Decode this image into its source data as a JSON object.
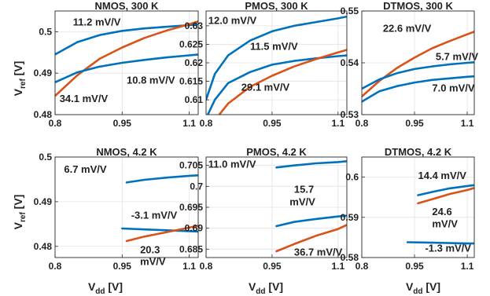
{
  "chart_data": [
    {
      "type": "line",
      "title": "NMOS, 300 K",
      "xlim": [
        0.8,
        1.12
      ],
      "ylim": [
        0.48,
        0.505
      ],
      "xticks": [
        "0.8",
        "0.95",
        "1.1"
      ],
      "yticks": [
        "0.48",
        "0.49",
        "0.5"
      ],
      "series": [
        {
          "color": "#0072BD",
          "x": [
            0.8,
            0.85,
            0.9,
            0.95,
            1.0,
            1.05,
            1.1,
            1.12
          ],
          "y": [
            0.4945,
            0.4975,
            0.4992,
            0.5002,
            0.5008,
            0.5012,
            0.5016,
            0.5018
          ]
        },
        {
          "color": "#D95319",
          "x": [
            0.8,
            0.85,
            0.9,
            0.95,
            1.0,
            1.05,
            1.1,
            1.12
          ],
          "y": [
            0.4845,
            0.4895,
            0.4935,
            0.4962,
            0.4985,
            0.5003,
            0.5018,
            0.5025
          ]
        },
        {
          "color": "#0072BD",
          "x": [
            0.8,
            0.85,
            0.9,
            0.95,
            1.0,
            1.05,
            1.1,
            1.12
          ],
          "y": [
            0.4878,
            0.4902,
            0.4916,
            0.4925,
            0.4932,
            0.4938,
            0.4943,
            0.4945
          ]
        }
      ],
      "annotations": [
        {
          "text": "11.2 mV/V",
          "x": 0.84,
          "y": 0.5015
        },
        {
          "text": "10.8 mV/V",
          "x": 0.96,
          "y": 0.4875
        },
        {
          "text": "34.1 mV/V",
          "x": 0.81,
          "y": 0.483
        }
      ]
    },
    {
      "type": "line",
      "title": "PMOS, 300 K",
      "xlim": [
        0.8,
        1.12
      ],
      "ylim": [
        0.606,
        0.634
      ],
      "xticks": [
        "0.8",
        "0.95",
        "1.1"
      ],
      "yticks": [
        "0.61",
        "0.615",
        "0.62",
        "0.625",
        "0.63"
      ],
      "series": [
        {
          "color": "#0072BD",
          "x": [
            0.8,
            0.82,
            0.85,
            0.9,
            0.95,
            1.0,
            1.05,
            1.1,
            1.12
          ],
          "y": [
            0.61,
            0.617,
            0.622,
            0.626,
            0.6285,
            0.63,
            0.631,
            0.632,
            0.6325
          ]
        },
        {
          "color": "#0072BD",
          "x": [
            0.8,
            0.82,
            0.85,
            0.9,
            0.95,
            1.0,
            1.05,
            1.1,
            1.12
          ],
          "y": [
            0.605,
            0.61,
            0.6145,
            0.6175,
            0.6195,
            0.6205,
            0.6212,
            0.6218,
            0.622
          ]
        },
        {
          "color": "#D95319",
          "x": [
            0.83,
            0.85,
            0.9,
            0.95,
            1.0,
            1.05,
            1.1,
            1.12
          ],
          "y": [
            0.606,
            0.609,
            0.6135,
            0.6165,
            0.619,
            0.621,
            0.6228,
            0.6235
          ]
        }
      ],
      "annotations": [
        {
          "text": "12.0 mV/V",
          "x": 0.805,
          "y": 0.6305
        },
        {
          "text": "11.5 mV/V",
          "x": 0.9,
          "y": 0.6235
        },
        {
          "text": "29.1 mV/V",
          "x": 0.88,
          "y": 0.6125
        }
      ]
    },
    {
      "type": "line",
      "title": "DTMOS, 300 K",
      "xlim": [
        0.8,
        1.12
      ],
      "ylim": [
        0.53,
        0.55
      ],
      "xticks": [
        "0.8",
        "0.95",
        "1.1"
      ],
      "yticks": [
        "0.53",
        "0.54",
        "0.55"
      ],
      "series": [
        {
          "color": "#D95319",
          "x": [
            0.8,
            0.85,
            0.9,
            0.95,
            1.0,
            1.05,
            1.1,
            1.12
          ],
          "y": [
            0.5335,
            0.5365,
            0.539,
            0.541,
            0.5428,
            0.5442,
            0.5455,
            0.546
          ]
        },
        {
          "color": "#0072BD",
          "x": [
            0.8,
            0.85,
            0.9,
            0.95,
            1.0,
            1.05,
            1.1,
            1.12
          ],
          "y": [
            0.535,
            0.5368,
            0.538,
            0.5388,
            0.5393,
            0.5397,
            0.54,
            0.5401
          ]
        },
        {
          "color": "#0072BD",
          "x": [
            0.8,
            0.85,
            0.9,
            0.95,
            1.0,
            1.05,
            1.1,
            1.12
          ],
          "y": [
            0.5325,
            0.5345,
            0.5355,
            0.5362,
            0.5367,
            0.537,
            0.5373,
            0.5374
          ]
        }
      ],
      "annotations": [
        {
          "text": "22.6 mV/V",
          "x": 0.86,
          "y": 0.546
        },
        {
          "text": "5.7 mV/V",
          "x": 1.01,
          "y": 0.5405
        },
        {
          "text": "7.0 mV/V",
          "x": 1.0,
          "y": 0.5345
        }
      ]
    },
    {
      "type": "line",
      "title": "NMOS, 4.2 K",
      "xlim": [
        0.8,
        1.12
      ],
      "ylim": [
        0.4775,
        0.5
      ],
      "xticks": [
        "0.8",
        "0.95",
        "1.1"
      ],
      "yticks": [
        "0.48",
        "0.49",
        "0.5"
      ],
      "series": [
        {
          "color": "#0072BD",
          "x": [
            0.96,
            1.0,
            1.05,
            1.1,
            1.12
          ],
          "y": [
            0.4943,
            0.4949,
            0.4954,
            0.4958,
            0.4959
          ]
        },
        {
          "color": "#0072BD",
          "x": [
            0.95,
            1.0,
            1.05,
            1.1,
            1.12
          ],
          "y": [
            0.484,
            0.4838,
            0.4836,
            0.4834,
            0.4833
          ]
        },
        {
          "color": "#D95319",
          "x": [
            0.96,
            1.0,
            1.05,
            1.1,
            1.12
          ],
          "y": [
            0.4812,
            0.4822,
            0.4832,
            0.4842,
            0.4846
          ]
        }
      ],
      "annotations": [
        {
          "text": "6.7 mV/V",
          "x": 0.82,
          "y": 0.4965
        },
        {
          "text": "-3.1 mV/V",
          "x": 0.97,
          "y": 0.4862
        },
        {
          "text": "20.3",
          "x": 0.99,
          "y": 0.4785
        },
        {
          "text": "mV/V",
          "x": 0.99,
          "y": 0.4758
        }
      ]
    },
    {
      "type": "line",
      "title": "PMOS, 4.2 K",
      "xlim": [
        0.8,
        1.12
      ],
      "ylim": [
        0.683,
        0.707
      ],
      "xticks": [
        "0.8",
        "0.95",
        "1.1"
      ],
      "yticks": [
        "0.685",
        "0.69",
        "0.695",
        "0.7",
        "0.705"
      ],
      "series": [
        {
          "color": "#0072BD",
          "x": [
            0.96,
            1.0,
            1.05,
            1.1,
            1.12
          ],
          "y": [
            0.7045,
            0.705,
            0.7055,
            0.7058,
            0.706
          ]
        },
        {
          "color": "#0072BD",
          "x": [
            0.96,
            1.0,
            1.05,
            1.1,
            1.12
          ],
          "y": [
            0.6905,
            0.6915,
            0.6922,
            0.6928,
            0.693
          ]
        },
        {
          "color": "#D95319",
          "x": [
            0.96,
            1.0,
            1.05,
            1.1,
            1.12
          ],
          "y": [
            0.6845,
            0.6862,
            0.6882,
            0.6898,
            0.6908
          ]
        }
      ],
      "annotations": [
        {
          "text": "11.0 mV/V",
          "x": 0.805,
          "y": 0.7045
        },
        {
          "text": "15.7",
          "x": 1.0,
          "y": 0.6985
        },
        {
          "text": "mV/V",
          "x": 0.99,
          "y": 0.6955
        },
        {
          "text": "36.7 mV/V",
          "x": 1.0,
          "y": 0.6835
        }
      ]
    },
    {
      "type": "line",
      "title": "DTMOS, 4.2 K",
      "xlim": [
        0.8,
        1.12
      ],
      "ylim": [
        0.58,
        0.605
      ],
      "xticks": [
        "0.8",
        "0.95",
        "1.1"
      ],
      "yticks": [
        "0.58",
        "0.59",
        "0.6"
      ],
      "series": [
        {
          "color": "#0072BD",
          "x": [
            0.96,
            1.0,
            1.05,
            1.1,
            1.12
          ],
          "y": [
            0.5955,
            0.5963,
            0.5972,
            0.5978,
            0.598
          ]
        },
        {
          "color": "#D95319",
          "x": [
            0.96,
            1.0,
            1.05,
            1.1,
            1.12
          ],
          "y": [
            0.5935,
            0.5945,
            0.5958,
            0.5968,
            0.5973
          ]
        },
        {
          "color": "#0072BD",
          "x": [
            0.93,
            1.0,
            1.05,
            1.1,
            1.12
          ],
          "y": [
            0.5838,
            0.5837,
            0.5836,
            0.5835,
            0.5835
          ]
        }
      ],
      "annotations": [
        {
          "text": "14.4 mV/V",
          "x": 0.96,
          "y": 0.5995
        },
        {
          "text": "24.6",
          "x": 1.0,
          "y": 0.5905
        },
        {
          "text": "mV/V",
          "x": 1.0,
          "y": 0.5875
        },
        {
          "text": "-1.3 mV/V",
          "x": 0.98,
          "y": 0.5815
        }
      ]
    }
  ],
  "ylabel": {
    "main": "V",
    "sub": "ref",
    "unit": " [V]"
  },
  "xlabel": {
    "main": "V",
    "sub": "dd",
    "unit": " [V]"
  }
}
